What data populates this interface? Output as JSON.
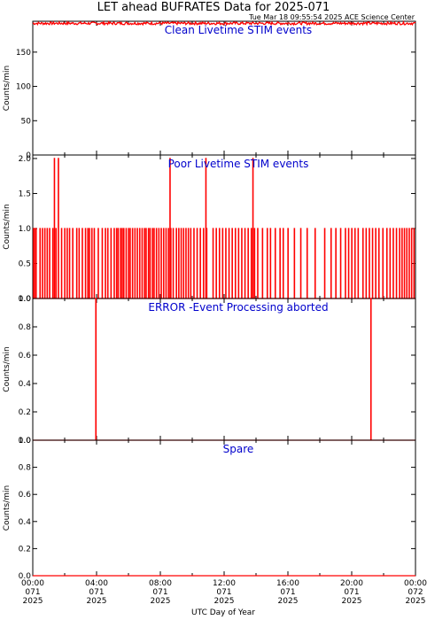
{
  "title": "LET ahead BUFRATES Data for 2025-071",
  "timestamp": "Tue Mar 18 09:55:54 2025 ACE Science Center",
  "xlabel": "UTC Day of Year",
  "colors": {
    "data": "#ff0000",
    "panel_title": "#0000cc",
    "axis": "#000000"
  },
  "chart_data": [
    {
      "type": "line",
      "panel_title": "Clean Livetime STIM events",
      "ylabel": "Counts/min",
      "ylim": [
        0,
        195
      ],
      "yticks": [
        "0",
        "50",
        "100",
        "150"
      ],
      "yticks_values": [
        0,
        50,
        100,
        150
      ],
      "baseline": 192,
      "noise": 2,
      "x_range_hours": [
        0,
        24
      ]
    },
    {
      "type": "line",
      "panel_title": "Poor Livetime STIM events",
      "ylabel": "Counts/min",
      "ylim": [
        0,
        2.05
      ],
      "yticks": [
        "0.0",
        "0.5",
        "1.0",
        "1.5",
        "2.0"
      ],
      "yticks_values": [
        0,
        0.5,
        1.0,
        1.5,
        2.0
      ],
      "spikes_hours_value1": [
        0.05,
        0.1,
        0.2,
        0.45,
        0.6,
        0.75,
        0.9,
        1.05,
        1.25,
        1.45,
        1.6,
        1.8,
        2.0,
        2.15,
        2.3,
        2.5,
        2.75,
        2.9,
        3.1,
        3.3,
        3.45,
        3.55,
        3.7,
        3.85,
        4.1,
        4.35,
        4.55,
        4.7,
        4.9,
        5.1,
        5.25,
        5.35,
        5.5,
        5.6,
        5.7,
        5.85,
        6.0,
        6.1,
        6.25,
        6.4,
        6.55,
        6.7,
        6.85,
        7.0,
        7.1,
        7.25,
        7.35,
        7.5,
        7.6,
        7.75,
        7.9,
        8.05,
        8.2,
        8.35,
        8.5,
        8.65,
        8.8,
        9.0,
        9.15,
        9.3,
        9.45,
        9.6,
        9.75,
        9.9,
        10.1,
        10.3,
        10.5,
        10.7,
        10.9,
        11.3,
        11.5,
        11.7,
        11.9,
        12.1,
        12.3,
        12.5,
        12.7,
        12.9,
        13.1,
        13.3,
        13.5,
        13.7,
        13.9,
        14.1,
        14.4,
        14.7,
        14.9,
        15.2,
        15.5,
        15.7,
        16.0,
        16.4,
        16.8,
        17.2,
        17.7,
        18.3,
        18.7,
        19.0,
        19.3,
        19.6,
        19.8,
        20.0,
        20.2,
        20.4,
        20.7,
        20.9,
        21.1,
        21.3,
        21.5,
        21.7,
        21.95,
        22.2,
        22.4,
        22.6,
        22.8,
        23.0,
        23.15,
        23.3,
        23.45,
        23.6,
        23.75,
        23.9
      ],
      "spikes_hours_value2": [
        1.35,
        1.6,
        8.6,
        10.85,
        13.8
      ]
    },
    {
      "type": "line",
      "panel_title": "ERROR -Event Processing aborted",
      "ylabel": "Counts/min",
      "ylim": [
        0,
        1.0
      ],
      "yticks": [
        "0.0",
        "0.2",
        "0.4",
        "0.6",
        "0.8",
        "1.0"
      ],
      "yticks_values": [
        0,
        0.2,
        0.4,
        0.6,
        0.8,
        1.0
      ],
      "spikes_hours_value1": [
        3.95,
        21.2
      ]
    },
    {
      "type": "line",
      "panel_title": "Spare",
      "ylabel": "Counts/min",
      "ylim": [
        0,
        1.0
      ],
      "yticks": [
        "0.0",
        "0.2",
        "0.4",
        "0.6",
        "0.8",
        "1.0"
      ],
      "yticks_values": [
        0,
        0.2,
        0.4,
        0.6,
        0.8,
        1.0
      ],
      "values_constant": 0
    }
  ],
  "x_ticks": [
    {
      "hour": 0,
      "time": "00:00",
      "doy": "071",
      "year": "2025"
    },
    {
      "hour": 4,
      "time": "04:00",
      "doy": "071",
      "year": "2025"
    },
    {
      "hour": 8,
      "time": "08:00",
      "doy": "071",
      "year": "2025"
    },
    {
      "hour": 12,
      "time": "12:00",
      "doy": "071",
      "year": "2025"
    },
    {
      "hour": 16,
      "time": "16:00",
      "doy": "071",
      "year": "2025"
    },
    {
      "hour": 20,
      "time": "20:00",
      "doy": "071",
      "year": "2025"
    },
    {
      "hour": 24,
      "time": "00:00",
      "doy": "072",
      "year": "2025"
    }
  ]
}
